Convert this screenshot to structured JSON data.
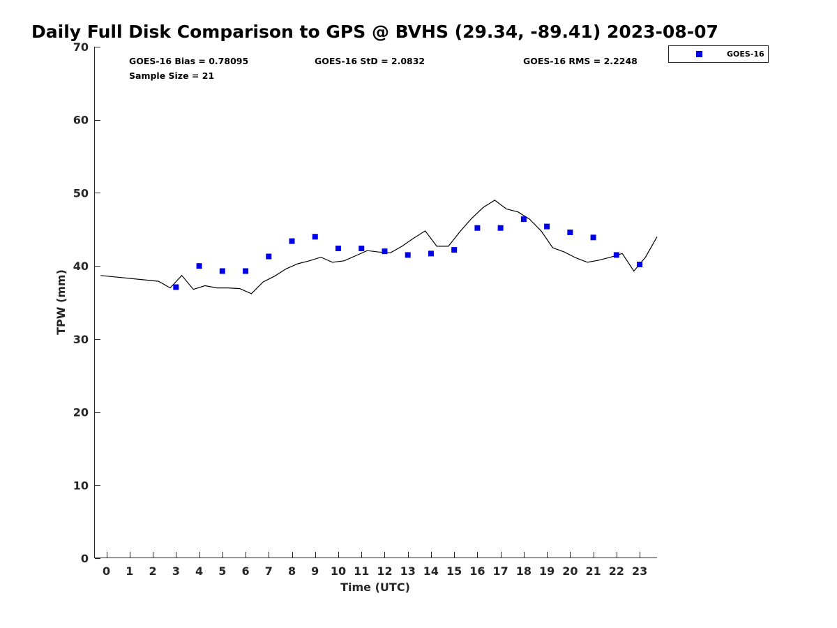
{
  "chart_data": {
    "type": "scatter",
    "title": "Daily Full Disk Comparison to GPS @ BVHS (29.34, -89.41) 2023-08-07",
    "xlabel": "Time (UTC)",
    "ylabel": "TPW (mm)",
    "xlim": [
      -0.5,
      23.75
    ],
    "ylim": [
      0,
      70
    ],
    "x_ticks": [
      0,
      1,
      2,
      3,
      4,
      5,
      6,
      7,
      8,
      9,
      10,
      11,
      12,
      13,
      14,
      15,
      16,
      17,
      18,
      19,
      20,
      21,
      22,
      23
    ],
    "y_ticks": [
      0,
      10,
      20,
      30,
      40,
      50,
      60,
      70
    ],
    "grid": false,
    "legend_position": "top-right, outside plot",
    "colors": {
      "goes16": "#0000e6",
      "gps_line": "#000000",
      "axis": "#262626"
    },
    "annotations": {
      "bias": "GOES-16 Bias = 0.78095",
      "std": "GOES-16 StD = 2.0832",
      "rms": "GOES-16 RMS = 2.2248",
      "sample_size": "Sample Size = 21"
    },
    "series": [
      {
        "name": "GOES-16",
        "marker": "square",
        "x": [
          3,
          4,
          5,
          6,
          7,
          8,
          9,
          10,
          11,
          12,
          13,
          14,
          15,
          16,
          17,
          18,
          19,
          20,
          21,
          22,
          23
        ],
        "y": [
          37.1,
          40.0,
          39.3,
          39.3,
          41.3,
          43.4,
          44.0,
          42.4,
          42.4,
          42.0,
          41.5,
          41.7,
          42.2,
          45.2,
          45.2,
          46.4,
          45.4,
          44.6,
          43.9,
          41.5,
          40.2
        ]
      },
      {
        "line": true,
        "x": [
          -0.25,
          2.25,
          2.75,
          3.25,
          3.75,
          4.25,
          4.75,
          5.25,
          5.75,
          6.25,
          6.75,
          7.25,
          7.75,
          8.25,
          8.75,
          9.25,
          9.75,
          10.25,
          10.75,
          11.25,
          11.75,
          12.25,
          12.75,
          13.25,
          13.75,
          14.25,
          14.75,
          15.25,
          15.75,
          16.25,
          16.75,
          17.25,
          17.75,
          18.25,
          18.75,
          19.25,
          19.75,
          20.25,
          20.75,
          21.25,
          21.75,
          22.25,
          22.75,
          23.25,
          23.75
        ],
        "y": [
          38.7,
          37.9,
          37.0,
          38.7,
          36.8,
          37.3,
          37.0,
          37.0,
          36.9,
          36.2,
          37.8,
          38.6,
          39.6,
          40.3,
          40.7,
          41.2,
          40.5,
          40.7,
          41.4,
          42.1,
          41.9,
          41.8,
          42.7,
          43.8,
          44.8,
          42.7,
          42.7,
          44.7,
          46.5,
          48.0,
          49.0,
          47.8,
          47.4,
          46.4,
          44.8,
          42.5,
          41.9,
          41.1,
          40.5,
          40.8,
          41.2,
          41.7,
          39.3,
          41.2,
          44.0
        ]
      }
    ]
  }
}
